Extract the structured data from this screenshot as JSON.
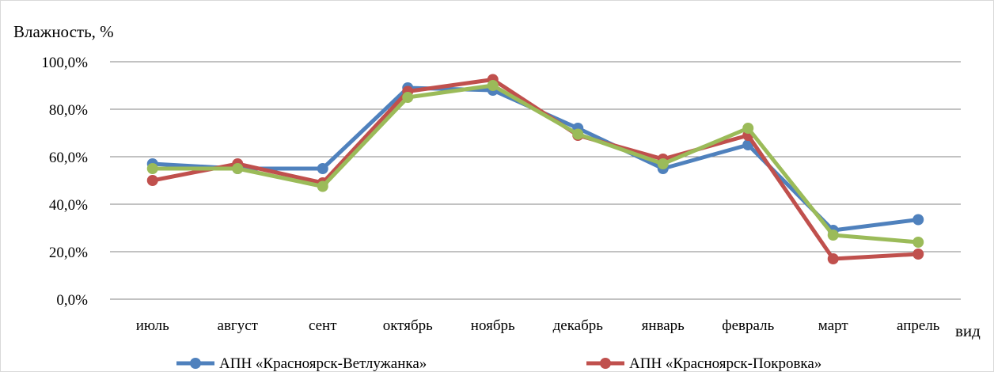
{
  "chart_data": {
    "type": "line",
    "ylabel": "Влажность, %",
    "xlabel": "вид",
    "categories": [
      "июль",
      "август",
      "сент",
      "октябрь",
      "ноябрь",
      "декабрь",
      "январь",
      "февраль",
      "март",
      "апрель"
    ],
    "ylim": [
      0,
      100
    ],
    "yticks": [
      "0,0%",
      "20,0%",
      "40,0%",
      "60,0%",
      "80,0%",
      "100,0%"
    ],
    "grid": true,
    "legend_position": "bottom",
    "series": [
      {
        "name": "АПН «Красноярск-Ветлужанка»",
        "color": "#4f81bd",
        "values": [
          57,
          55,
          55,
          89,
          88,
          72,
          55,
          65,
          29,
          33.5
        ]
      },
      {
        "name": "АПН «Красноярск-Покровка»",
        "color": "#c0504d",
        "values": [
          50,
          57,
          49,
          87.5,
          92.5,
          69,
          59,
          69,
          17,
          19
        ]
      },
      {
        "name": "",
        "color": "#9bbb59",
        "values": [
          55,
          55,
          47.5,
          85,
          90,
          69.5,
          57,
          72,
          27,
          24
        ]
      }
    ]
  }
}
